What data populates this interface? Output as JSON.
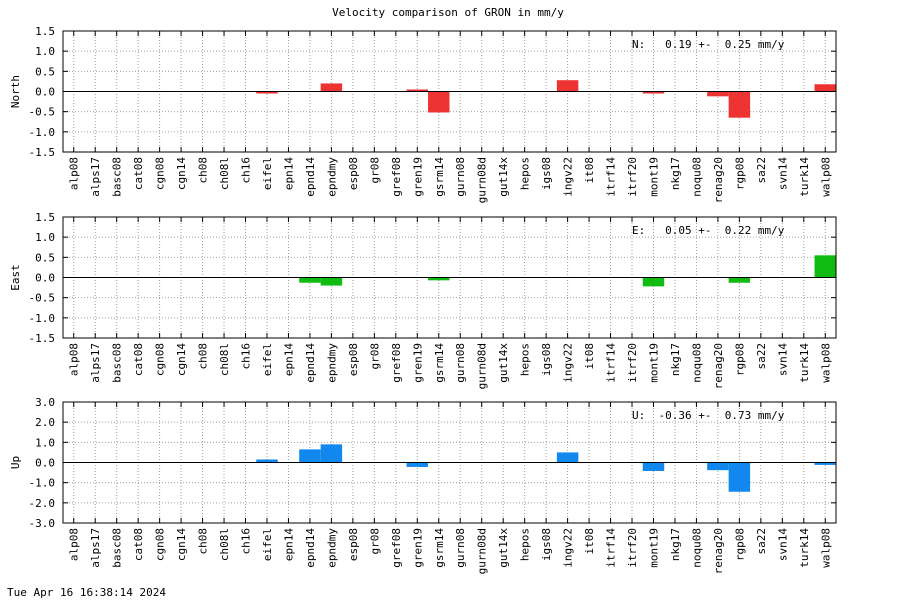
{
  "chart_data": {
    "type": "bar",
    "title": "Velocity comparison of GRON in mm/y",
    "grid": true,
    "categories": [
      "alp08",
      "alps17",
      "basc08",
      "cat08",
      "cgn08",
      "cgn14",
      "ch08",
      "ch08l",
      "ch16",
      "eifel",
      "epn14",
      "epnd14",
      "epndmy",
      "esp08",
      "gr08",
      "gref08",
      "gren19",
      "gsrm14",
      "gurn08",
      "gurn08d",
      "gut14x",
      "hepos",
      "igs08",
      "ingv22",
      "it08",
      "itrf14",
      "itrf20",
      "mont19",
      "nkg17",
      "noqu08",
      "renag20",
      "rgp08",
      "sa22",
      "svn14",
      "turk14",
      "walp08"
    ],
    "panels": [
      {
        "name": "North",
        "ylabel": "North",
        "color": "#ee3333",
        "ylim": [
          -1.5,
          1.5
        ],
        "yticks": [
          "1.5",
          "1.0",
          "0.5",
          "0.0",
          "-0.5",
          "-1.0",
          "-1.5"
        ],
        "stat": "N:   0.19 +-  0.25 mm/y",
        "values": [
          null,
          null,
          null,
          null,
          null,
          null,
          null,
          null,
          null,
          -0.05,
          null,
          null,
          0.2,
          null,
          null,
          null,
          0.05,
          -0.52,
          null,
          null,
          null,
          null,
          null,
          0.28,
          null,
          null,
          null,
          -0.05,
          null,
          null,
          -0.12,
          -0.65,
          null,
          null,
          null,
          0.18
        ]
      },
      {
        "name": "East",
        "ylabel": "East",
        "color": "#11bb11",
        "ylim": [
          -1.5,
          1.5
        ],
        "yticks": [
          "1.5",
          "1.0",
          "0.5",
          "0.0",
          "-0.5",
          "-1.0",
          "-1.5"
        ],
        "stat": "E:   0.05 +-  0.22 mm/y",
        "values": [
          null,
          null,
          null,
          null,
          null,
          null,
          null,
          null,
          null,
          null,
          null,
          -0.13,
          -0.2,
          null,
          null,
          null,
          null,
          -0.07,
          null,
          null,
          null,
          null,
          null,
          null,
          null,
          null,
          null,
          -0.22,
          null,
          null,
          null,
          -0.13,
          null,
          null,
          null,
          0.55
        ]
      },
      {
        "name": "Up",
        "ylabel": "Up",
        "color": "#1188ee",
        "ylim": [
          -3.0,
          3.0
        ],
        "yticks": [
          "3.0",
          "2.0",
          "1.0",
          "0.0",
          "-1.0",
          "-2.0",
          "-3.0"
        ],
        "stat": "U:  -0.36 +-  0.73 mm/y",
        "values": [
          null,
          null,
          null,
          null,
          null,
          null,
          null,
          null,
          null,
          0.15,
          null,
          0.65,
          0.9,
          null,
          null,
          null,
          -0.22,
          null,
          null,
          null,
          null,
          null,
          null,
          0.5,
          null,
          null,
          null,
          -0.42,
          null,
          null,
          -0.38,
          -1.45,
          null,
          null,
          null,
          -0.12
        ]
      }
    ]
  },
  "footer": {
    "timestamp": "Tue Apr 16 16:38:14 2024"
  }
}
